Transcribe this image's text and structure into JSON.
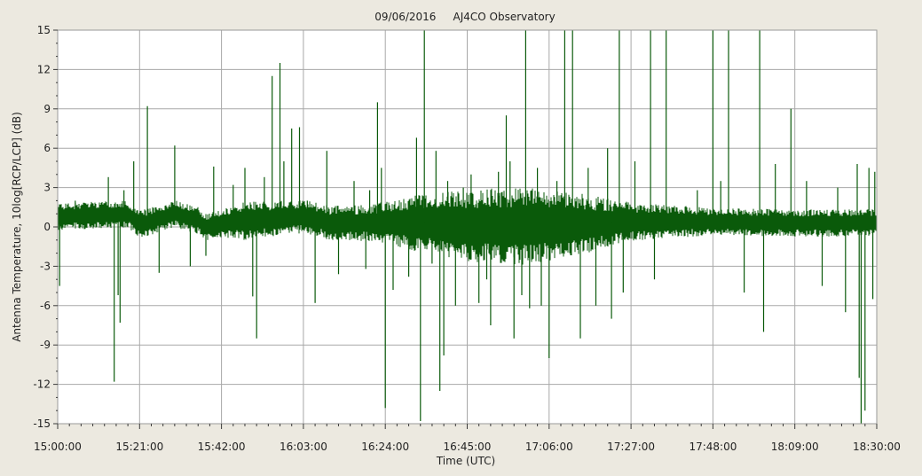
{
  "chart_data": {
    "type": "line",
    "title": "09/06/2016     AJ4CO Observatory",
    "xlabel": "Time (UTC)",
    "ylabel": "Antenna Temperature, 10log[RCP/LCP] (dB)",
    "x_ticks": [
      "15:00:00",
      "15:21:00",
      "15:42:00",
      "16:03:00",
      "16:24:00",
      "16:45:00",
      "17:06:00",
      "17:27:00",
      "17:48:00",
      "18:09:00",
      "18:30:00"
    ],
    "x_range": [
      "15:00:00",
      "18:30:00"
    ],
    "y_ticks": [
      15,
      12,
      9,
      6,
      3,
      0,
      -3,
      -6,
      -9,
      -12,
      -15
    ],
    "ylim": [
      -15,
      15
    ],
    "grid": true,
    "colors": {
      "series": "#0a5a0a",
      "plot_bg": "#ffffff",
      "grid": "#a8a8a8",
      "page_bg": "#ece9e0"
    },
    "series": [
      {
        "baseline": [
          [
            "15:00:00",
            0.8
          ],
          [
            "15:10:00",
            0.9
          ],
          [
            "15:18:00",
            1.0
          ],
          [
            "15:21:00",
            0.2
          ],
          [
            "15:26:00",
            0.6
          ],
          [
            "15:30:00",
            1.0
          ],
          [
            "15:36:00",
            0.5
          ],
          [
            "15:38:00",
            0.0
          ],
          [
            "15:45:00",
            0.4
          ],
          [
            "15:55:00",
            0.6
          ],
          [
            "16:03:00",
            0.8
          ],
          [
            "16:10:00",
            0.3
          ],
          [
            "16:24:00",
            0.3
          ],
          [
            "16:35:00",
            0.3
          ],
          [
            "16:45:00",
            0.1
          ],
          [
            "17:06:00",
            0.1
          ],
          [
            "17:15:00",
            0.2
          ],
          [
            "17:27:00",
            0.4
          ],
          [
            "17:48:00",
            0.4
          ],
          [
            "18:09:00",
            0.3
          ],
          [
            "18:30:00",
            0.3
          ]
        ],
        "noise_envelope": [
          [
            "15:00:00",
            0.9
          ],
          [
            "15:42:00",
            0.9
          ],
          [
            "15:48:00",
            1.3
          ],
          [
            "16:03:00",
            1.1
          ],
          [
            "16:20:00",
            1.2
          ],
          [
            "16:34:00",
            2.0
          ],
          [
            "16:45:00",
            2.4
          ],
          [
            "17:00:00",
            2.6
          ],
          [
            "17:15:00",
            2.0
          ],
          [
            "17:27:00",
            1.3
          ],
          [
            "17:48:00",
            0.9
          ],
          [
            "18:09:00",
            0.9
          ],
          [
            "18:30:00",
            0.9
          ]
        ],
        "spikes": [
          [
            "15:00:30",
            -4.5
          ],
          [
            "15:04:30",
            2.0
          ],
          [
            "15:13:00",
            3.8
          ],
          [
            "15:14:30",
            -11.8
          ],
          [
            "15:15:30",
            -5.2
          ],
          [
            "15:16:00",
            -7.3
          ],
          [
            "15:17:00",
            2.8
          ],
          [
            "15:19:30",
            5.0
          ],
          [
            "15:23:00",
            9.2
          ],
          [
            "15:26:00",
            -3.5
          ],
          [
            "15:30:00",
            6.2
          ],
          [
            "15:34:00",
            -3.0
          ],
          [
            "15:38:00",
            -2.2
          ],
          [
            "15:40:00",
            4.6
          ],
          [
            "15:45:00",
            3.2
          ],
          [
            "15:48:00",
            4.5
          ],
          [
            "15:50:00",
            -5.3
          ],
          [
            "15:51:00",
            -8.5
          ],
          [
            "15:53:00",
            3.8
          ],
          [
            "15:55:00",
            11.5
          ],
          [
            "15:57:00",
            12.5
          ],
          [
            "15:58:00",
            5.0
          ],
          [
            "16:00:00",
            7.5
          ],
          [
            "16:02:00",
            7.6
          ],
          [
            "16:04:00",
            2.0
          ],
          [
            "16:06:00",
            -5.8
          ],
          [
            "16:09:00",
            5.8
          ],
          [
            "16:12:00",
            -3.6
          ],
          [
            "16:16:00",
            3.5
          ],
          [
            "16:19:00",
            -3.2
          ],
          [
            "16:20:00",
            2.8
          ],
          [
            "16:22:00",
            9.5
          ],
          [
            "16:23:00",
            4.5
          ],
          [
            "16:24:00",
            -13.8
          ],
          [
            "16:26:00",
            -4.8
          ],
          [
            "16:30:00",
            -3.8
          ],
          [
            "16:32:00",
            6.8
          ],
          [
            "16:33:00",
            -14.8
          ],
          [
            "16:34:00",
            15.0
          ],
          [
            "16:36:00",
            -2.8
          ],
          [
            "16:37:00",
            5.8
          ],
          [
            "16:38:00",
            -12.5
          ],
          [
            "16:39:00",
            -9.8
          ],
          [
            "16:40:00",
            3.5
          ],
          [
            "16:42:00",
            -6.0
          ],
          [
            "16:44:00",
            3.0
          ],
          [
            "16:46:00",
            4.0
          ],
          [
            "16:48:00",
            -5.8
          ],
          [
            "16:50:00",
            -4.0
          ],
          [
            "16:51:00",
            -7.5
          ],
          [
            "16:53:00",
            4.2
          ],
          [
            "16:55:00",
            8.5
          ],
          [
            "16:56:00",
            5.0
          ],
          [
            "16:57:00",
            -8.5
          ],
          [
            "16:59:00",
            -5.2
          ],
          [
            "17:00:00",
            15.0
          ],
          [
            "17:01:00",
            -6.2
          ],
          [
            "17:03:00",
            4.5
          ],
          [
            "17:04:00",
            -6.0
          ],
          [
            "17:06:00",
            -10.0
          ],
          [
            "17:08:00",
            3.5
          ],
          [
            "17:10:00",
            15.0
          ],
          [
            "17:12:00",
            15.0
          ],
          [
            "17:14:00",
            -8.5
          ],
          [
            "17:16:00",
            4.5
          ],
          [
            "17:18:00",
            -6.0
          ],
          [
            "17:21:00",
            6.0
          ],
          [
            "17:22:00",
            -7.0
          ],
          [
            "17:24:00",
            15.0
          ],
          [
            "17:25:00",
            -5.0
          ],
          [
            "17:28:00",
            5.0
          ],
          [
            "17:32:00",
            15.0
          ],
          [
            "17:33:00",
            -4.0
          ],
          [
            "17:36:00",
            15.0
          ],
          [
            "17:44:00",
            2.8
          ],
          [
            "17:48:00",
            15.0
          ],
          [
            "17:50:00",
            3.5
          ],
          [
            "17:52:00",
            15.0
          ],
          [
            "17:56:00",
            -5.0
          ],
          [
            "18:00:00",
            15.0
          ],
          [
            "18:01:00",
            -8.0
          ],
          [
            "18:04:00",
            4.8
          ],
          [
            "18:08:00",
            9.0
          ],
          [
            "18:12:00",
            3.5
          ],
          [
            "18:16:00",
            -4.5
          ],
          [
            "18:20:00",
            3.0
          ],
          [
            "18:22:00",
            -6.5
          ],
          [
            "18:25:00",
            4.8
          ],
          [
            "18:25:30",
            -11.5
          ],
          [
            "18:26:00",
            -15.0
          ],
          [
            "18:27:00",
            -14.0
          ],
          [
            "18:28:00",
            4.5
          ],
          [
            "18:29:00",
            -5.5
          ],
          [
            "18:29:30",
            4.2
          ]
        ]
      }
    ]
  }
}
